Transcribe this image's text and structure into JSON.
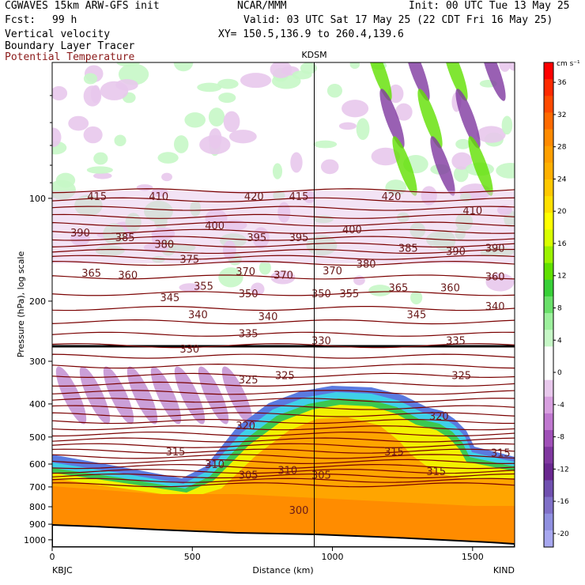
{
  "header": {
    "model": "CGWAVES 15km ARW-GFS init",
    "org": "NCAR/MMM",
    "init": "Init: 00 UTC Tue 13 May 25",
    "fcst_label": "Fcst:",
    "fcst_value": "99 h",
    "valid": "Valid: 03 UTC Sat 17 May 25 (22 CDT Fri 16 May 25)",
    "xy": "XY= 150.5,136.9 to 260.4,139.6",
    "field1": "Vertical velocity",
    "field2": "Boundary Layer Tracer",
    "field3": "Potential Temperature",
    "field3_color": "#8b1a1a"
  },
  "chart_data": {
    "type": "heatmap",
    "xlabel": "Distance (km)",
    "ylabel": "Pressure (hPa), log scale",
    "xlim": [
      0,
      1650
    ],
    "x_ticks": [
      "0",
      "500",
      "1000",
      "1500"
    ],
    "y_ticks": [
      "100",
      "200",
      "300",
      "400",
      "500",
      "600",
      "700",
      "800",
      "900",
      "1000"
    ],
    "marker_label": "KDSM",
    "marker_x": 935,
    "left_station": "KBJC",
    "right_station": "KIND",
    "colorbar": {
      "unit": "cm s⁻¹",
      "tick_labels": [
        "36",
        "32",
        "28",
        "24",
        "20",
        "16",
        "12",
        "8",
        "4",
        "0",
        "-4",
        "-8",
        "-12",
        "-16",
        "-20"
      ],
      "colors": [
        "#ff0000",
        "#ff2a00",
        "#ff4a00",
        "#ff6a00",
        "#ff8a00",
        "#ff9f00",
        "#ffb000",
        "#ffc800",
        "#ffe000",
        "#ffff00",
        "#d8ff00",
        "#9cf200",
        "#60e000",
        "#38d038",
        "#6ae06a",
        "#9df09d",
        "#c6f7c6",
        "#ffffff",
        "#ffffff",
        "#e8c8ec",
        "#d8a0e0",
        "#c078d0",
        "#a050b8",
        "#8038a0",
        "#6a2890",
        "#7050b0",
        "#8070c8",
        "#9090e0",
        "#a8a8f0"
      ]
    },
    "theta_labels": [
      {
        "t": "415",
        "x": 160,
        "p": 100
      },
      {
        "t": "410",
        "x": 380,
        "p": 100
      },
      {
        "t": "420",
        "x": 720,
        "p": 100
      },
      {
        "t": "415",
        "x": 880,
        "p": 100
      },
      {
        "t": "420",
        "x": 1210,
        "p": 100
      },
      {
        "t": "410",
        "x": 1500,
        "p": 110
      },
      {
        "t": "390",
        "x": 100,
        "p": 128
      },
      {
        "t": "385",
        "x": 260,
        "p": 132
      },
      {
        "t": "380",
        "x": 400,
        "p": 138
      },
      {
        "t": "400",
        "x": 580,
        "p": 122
      },
      {
        "t": "395",
        "x": 730,
        "p": 132
      },
      {
        "t": "395",
        "x": 880,
        "p": 132
      },
      {
        "t": "400",
        "x": 1070,
        "p": 125
      },
      {
        "t": "385",
        "x": 1270,
        "p": 142
      },
      {
        "t": "390",
        "x": 1440,
        "p": 145
      },
      {
        "t": "390",
        "x": 1580,
        "p": 142
      },
      {
        "t": "365",
        "x": 140,
        "p": 168
      },
      {
        "t": "360",
        "x": 270,
        "p": 170
      },
      {
        "t": "375",
        "x": 490,
        "p": 153
      },
      {
        "t": "370",
        "x": 690,
        "p": 166
      },
      {
        "t": "370",
        "x": 825,
        "p": 170
      },
      {
        "t": "370",
        "x": 1000,
        "p": 165
      },
      {
        "t": "380",
        "x": 1120,
        "p": 158
      },
      {
        "t": "365",
        "x": 1235,
        "p": 185
      },
      {
        "t": "360",
        "x": 1420,
        "p": 185
      },
      {
        "t": "360",
        "x": 1580,
        "p": 172
      },
      {
        "t": "345",
        "x": 420,
        "p": 198
      },
      {
        "t": "355",
        "x": 540,
        "p": 183
      },
      {
        "t": "350",
        "x": 700,
        "p": 193
      },
      {
        "t": "350",
        "x": 960,
        "p": 193
      },
      {
        "t": "355",
        "x": 1060,
        "p": 193
      },
      {
        "t": "340",
        "x": 520,
        "p": 222
      },
      {
        "t": "340",
        "x": 770,
        "p": 225
      },
      {
        "t": "345",
        "x": 1300,
        "p": 222
      },
      {
        "t": "340",
        "x": 1580,
        "p": 210
      },
      {
        "t": "335",
        "x": 700,
        "p": 252
      },
      {
        "t": "335",
        "x": 1440,
        "p": 265
      },
      {
        "t": "330",
        "x": 490,
        "p": 280
      },
      {
        "t": "330",
        "x": 960,
        "p": 265
      },
      {
        "t": "325",
        "x": 700,
        "p": 345
      },
      {
        "t": "325",
        "x": 830,
        "p": 335
      },
      {
        "t": "325",
        "x": 1460,
        "p": 335
      },
      {
        "t": "320",
        "x": 690,
        "p": 470
      },
      {
        "t": "320",
        "x": 1380,
        "p": 440
      },
      {
        "t": "315",
        "x": 440,
        "p": 560
      },
      {
        "t": "315",
        "x": 1220,
        "p": 560
      },
      {
        "t": "315",
        "x": 1600,
        "p": 565
      },
      {
        "t": "315",
        "x": 1370,
        "p": 640
      },
      {
        "t": "310",
        "x": 580,
        "p": 610
      },
      {
        "t": "310",
        "x": 840,
        "p": 635
      },
      {
        "t": "305",
        "x": 700,
        "p": 655
      },
      {
        "t": "305",
        "x": 960,
        "p": 655
      },
      {
        "t": "300",
        "x": 880,
        "p": 830
      }
    ]
  }
}
